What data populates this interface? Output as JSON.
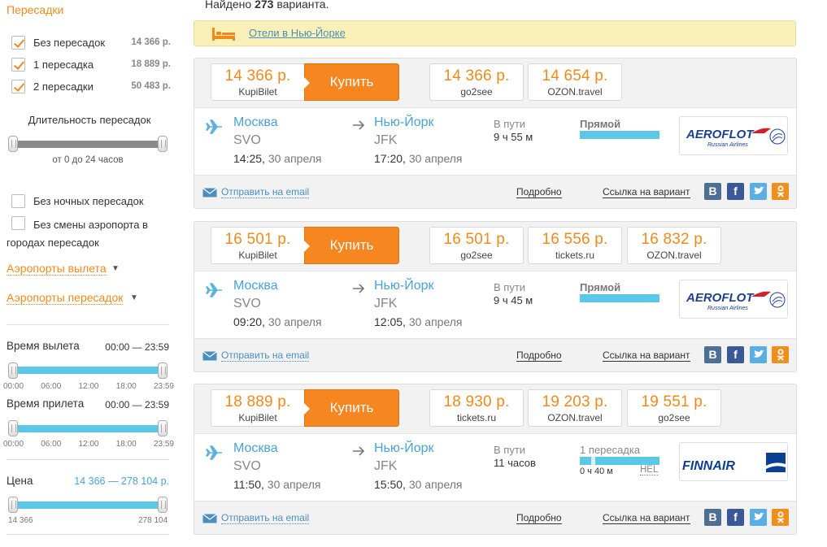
{
  "sidebar": {
    "transfers_title": "Пересадки",
    "transfer_options": [
      {
        "label": "Без пересадок",
        "price": "14 366 р.",
        "checked": true
      },
      {
        "label": "1 пересадка",
        "price": "18 889 р.",
        "checked": true
      },
      {
        "label": "2 пересадки",
        "price": "50 483 р.",
        "checked": true
      }
    ],
    "duration_title": "Длительность пересадок",
    "duration_range": "от 0 до 24 часов",
    "no_night": "Без ночных пересадок",
    "no_airport_change": "Без смены аэропорта в городах пересадок",
    "departure_airports": "Аэропорты вылета",
    "transfer_airports": "Аэропорты пересадок",
    "departure_time_label": "Время вылета",
    "departure_time_value": "00:00 — 23:59",
    "arrival_time_label": "Время прилета",
    "arrival_time_value": "00:00 — 23:59",
    "time_ticks": [
      "00:00",
      "06:00",
      "12:00",
      "18:00",
      "23:59"
    ],
    "price_label": "Цена",
    "price_range": "14 366 — 278 104 р.",
    "price_min": "14 366",
    "price_max": "278 104"
  },
  "header": {
    "found_prefix": "Найдено",
    "found_count": "273",
    "found_suffix": "варианта."
  },
  "hotel": {
    "link": "Отели в Нью-Йорке"
  },
  "buy_label": "Купить",
  "common": {
    "from_city": "Москва",
    "from_code": "SVO",
    "to_city": "Нью-Йорк",
    "to_code": "JFK",
    "date": "30 апреля",
    "in_transit": "В пути",
    "email": "Отправить на email",
    "details": "Подробно",
    "link": "Ссылка на вариант"
  },
  "results": [
    {
      "main_price": "14 366 р.",
      "main_seller": "KupiBilet",
      "offers": [
        {
          "price": "14 366 р.",
          "seller": "go2see"
        },
        {
          "price": "14 654 р.",
          "seller": "OZON.travel"
        }
      ],
      "dep_time": "14:25",
      "arr_time": "17:20",
      "duration": "9 ч 55 м",
      "stops": "Прямой",
      "airline": "AEROFLOT"
    },
    {
      "main_price": "16 501 р.",
      "main_seller": "KupiBilet",
      "offers": [
        {
          "price": "16 501 р.",
          "seller": "go2see"
        },
        {
          "price": "16 556 р.",
          "seller": "tickets.ru"
        },
        {
          "price": "16 832 р.",
          "seller": "OZON.travel"
        }
      ],
      "dep_time": "09:20",
      "arr_time": "12:05",
      "duration": "9 ч 45 м",
      "stops": "Прямой",
      "airline": "AEROFLOT"
    },
    {
      "main_price": "18 889 р.",
      "main_seller": "KupiBilet",
      "offers": [
        {
          "price": "18 930 р.",
          "seller": "tickets.ru"
        },
        {
          "price": "19 203 р.",
          "seller": "OZON.travel"
        },
        {
          "price": "19 551 р.",
          "seller": "go2see"
        }
      ],
      "dep_time": "11:50",
      "arr_time": "15:50",
      "duration": "11 часов",
      "stops": "1 пересадка",
      "layover": "0 ч 40 м",
      "layover_code": "HEL",
      "airline": "FINNAIR"
    }
  ],
  "colors": {
    "accent": "#f08a1c",
    "link": "#4a8fbf",
    "buy": "#f6861f",
    "slider": "#5bc8e8"
  }
}
